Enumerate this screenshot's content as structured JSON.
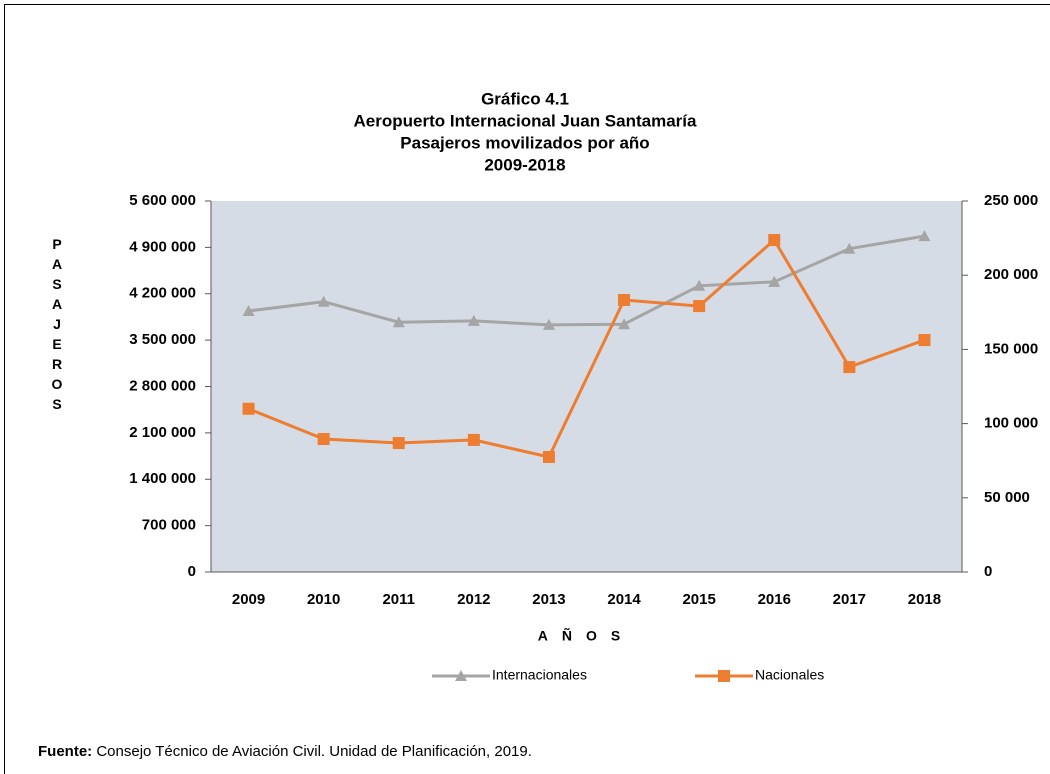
{
  "chart_data": {
    "type": "line",
    "title": [
      "Gráfico 4.1",
      "Aeropuerto Internacional Juan Santamaría",
      "Pasajeros movilizados por año",
      "2009-2018"
    ],
    "ylabel": "PASAJEROS",
    "xlabel": "AÑOS",
    "categories": [
      "2009",
      "2010",
      "2011",
      "2012",
      "2013",
      "2014",
      "2015",
      "2016",
      "2017",
      "2018"
    ],
    "series": [
      {
        "name": "Internacionales",
        "color": "#a5a5a5",
        "marker": "triangle",
        "axis": "y",
        "values": [
          3940000,
          4080000,
          3770000,
          3790000,
          3730000,
          3740000,
          4320000,
          4380000,
          4880000,
          5070000
        ]
      },
      {
        "name": "Nacionales",
        "color": "#ed7d31",
        "marker": "square",
        "axis": "y2",
        "values": [
          110000,
          89600,
          86900,
          89000,
          77500,
          183300,
          179200,
          223700,
          138100,
          156300
        ]
      }
    ],
    "ylim": [
      0,
      5600000
    ],
    "yticks": [
      0,
      {
        "value": 700000,
        "label": "700 000"
      },
      {
        "value": 1400000,
        "label": "1 400 000"
      },
      {
        "value": 2100000,
        "label": "2 100 000"
      },
      {
        "value": 2800000,
        "label": "2 800 000"
      },
      {
        "value": 3500000,
        "label": "3 500 000"
      },
      {
        "value": 4200000,
        "label": "4 200 000"
      },
      {
        "value": 4900000,
        "label": "4 900 000"
      },
      {
        "value": 5600000,
        "label": "5 600 000"
      }
    ],
    "y2lim": [
      0,
      250000
    ],
    "y2ticks": [
      0,
      {
        "value": 50000,
        "label": "50 000"
      },
      {
        "value": 100000,
        "label": "100 000"
      },
      {
        "value": 150000,
        "label": "150 000"
      },
      {
        "value": 200000,
        "label": "200 000"
      },
      {
        "value": 250000,
        "label": "250 000"
      }
    ],
    "plot_background": "#d6dce5",
    "legend": "bottom",
    "source_label": "Fuente:",
    "source": "Consejo Técnico de Aviación Civil. Unidad de Planificación, 2019."
  }
}
